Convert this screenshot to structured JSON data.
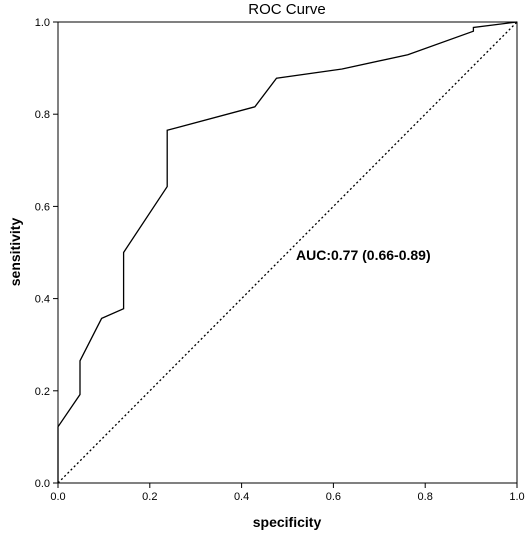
{
  "chart_data": {
    "type": "line",
    "title": "ROC Curve",
    "xlabel": "specificity",
    "ylabel": "sensitivity",
    "xlim": [
      0,
      1
    ],
    "ylim": [
      0,
      1
    ],
    "x_ticks": [
      "0.0",
      "0.2",
      "0.4",
      "0.6",
      "0.8",
      "1.0"
    ],
    "y_ticks": [
      "0.0",
      "0.2",
      "0.4",
      "0.6",
      "0.8",
      "1.0"
    ],
    "grid": false,
    "legend": "none",
    "annotation": "AUC:0.77 (0.66-0.89)",
    "series": [
      {
        "style": "solid",
        "x": [
          0.0,
          0.0,
          0.048,
          0.048,
          0.095,
          0.143,
          0.143,
          0.238,
          0.238,
          0.429,
          0.476,
          0.619,
          0.762,
          0.905,
          0.905,
          1.0
        ],
        "y": [
          0.0,
          0.122,
          0.192,
          0.265,
          0.357,
          0.378,
          0.5,
          0.643,
          0.765,
          0.816,
          0.878,
          0.898,
          0.929,
          0.98,
          0.988,
          1.0
        ]
      },
      {
        "style": "dotted",
        "x": [
          0,
          1
        ],
        "y": [
          0,
          1
        ]
      }
    ]
  }
}
